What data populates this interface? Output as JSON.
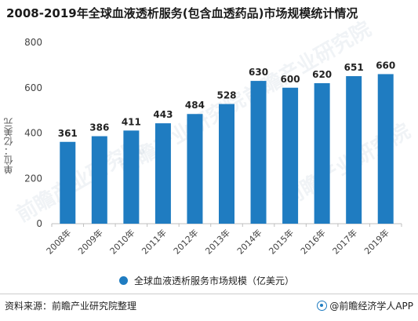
{
  "title": "2008-2019年全球血液透析服务(包含血透药品)市场规模统计情况",
  "watermark": "前瞻产业研究院",
  "footer": {
    "source": "资料来源：前瞻产业研究院整理",
    "brand": "@前瞻经济学人APP"
  },
  "colors": {
    "bar": "#1f7cc1"
  },
  "chart_data": {
    "type": "bar",
    "title": "2008-2019年全球血液透析服务(包含血透药品)市场规模统计情况",
    "ylabel": "单位：亿美元",
    "xlabel": "",
    "categories": [
      "2008年",
      "2009年",
      "2010年",
      "2011年",
      "2012年",
      "2013年",
      "2014年",
      "2015年",
      "2016年",
      "2017年",
      "2019年"
    ],
    "series": [
      {
        "name": "全球血液透析服务市场规模（亿美元）",
        "values": [
          361,
          386,
          411,
          443,
          484,
          528,
          630,
          600,
          620,
          651,
          660
        ]
      }
    ],
    "ylim": [
      0,
      800
    ],
    "yticks": [
      0,
      200,
      400,
      600,
      800
    ],
    "grid": false,
    "data_labels": true,
    "legend": "bottom"
  }
}
